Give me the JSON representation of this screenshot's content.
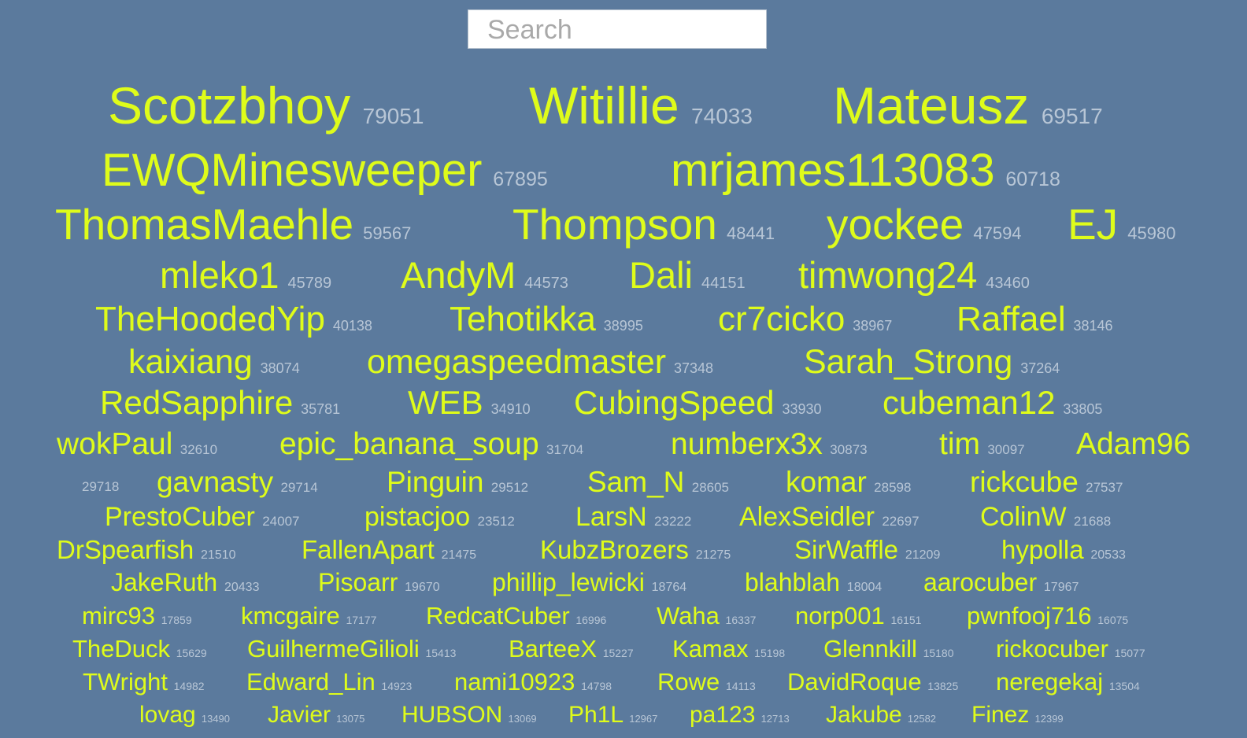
{
  "search": {
    "placeholder": "Search"
  },
  "users": [
    {
      "name": "Scotzbhoy",
      "score": "79051"
    },
    {
      "name": "Witillie",
      "score": "74033"
    },
    {
      "name": "Mateusz",
      "score": "69517"
    },
    {
      "name": "EWQMinesweeper",
      "score": "67895"
    },
    {
      "name": "mrjames113083",
      "score": "60718"
    },
    {
      "name": "ThomasMaehle",
      "score": "59567"
    },
    {
      "name": "Thompson",
      "score": "48441"
    },
    {
      "name": "yockee",
      "score": "47594"
    },
    {
      "name": "EJ",
      "score": "45980"
    },
    {
      "name": "mleko1",
      "score": "45789"
    },
    {
      "name": "AndyM",
      "score": "44573"
    },
    {
      "name": "Dali",
      "score": "44151"
    },
    {
      "name": "timwong24",
      "score": "43460"
    },
    {
      "name": "TheHoodedYip",
      "score": "40138"
    },
    {
      "name": "Tehotikka",
      "score": "38995"
    },
    {
      "name": "cr7cicko",
      "score": "38967"
    },
    {
      "name": "Raffael",
      "score": "38146"
    },
    {
      "name": "kaixiang",
      "score": "38074"
    },
    {
      "name": "omegaspeedmaster",
      "score": "37348"
    },
    {
      "name": "Sarah_Strong",
      "score": "37264"
    },
    {
      "name": "RedSapphire",
      "score": "35781"
    },
    {
      "name": "WEB",
      "score": "34910"
    },
    {
      "name": "CubingSpeed",
      "score": "33930"
    },
    {
      "name": "cubeman12",
      "score": "33805"
    },
    {
      "name": "wokPaul",
      "score": "32610"
    },
    {
      "name": "epic_banana_soup",
      "score": "31704"
    },
    {
      "name": "numberx3x",
      "score": "30873"
    },
    {
      "name": "tim",
      "score": "30097"
    },
    {
      "name": "Adam96",
      "score": "29718"
    },
    {
      "name": "gavnasty",
      "score": "29714"
    },
    {
      "name": "Pinguin",
      "score": "29512"
    },
    {
      "name": "Sam_N",
      "score": "28605"
    },
    {
      "name": "komar",
      "score": "28598"
    },
    {
      "name": "rickcube",
      "score": "27537"
    },
    {
      "name": "PrestoCuber",
      "score": "24007"
    },
    {
      "name": "pistacjoo",
      "score": "23512"
    },
    {
      "name": "LarsN",
      "score": "23222"
    },
    {
      "name": "AlexSeidler",
      "score": "22697"
    },
    {
      "name": "ColinW",
      "score": "21688"
    },
    {
      "name": "DrSpearfish",
      "score": "21510"
    },
    {
      "name": "FallenApart",
      "score": "21475"
    },
    {
      "name": "KubzBrozers",
      "score": "21275"
    },
    {
      "name": "SirWaffle",
      "score": "21209"
    },
    {
      "name": "hypolla",
      "score": "20533"
    },
    {
      "name": "JakeRuth",
      "score": "20433"
    },
    {
      "name": "Pisoarr",
      "score": "19670"
    },
    {
      "name": "phillip_lewicki",
      "score": "18764"
    },
    {
      "name": "blahblah",
      "score": "18004"
    },
    {
      "name": "aarocuber",
      "score": "17967"
    },
    {
      "name": "mirc93",
      "score": "17859"
    },
    {
      "name": "kmcgaire",
      "score": "17177"
    },
    {
      "name": "RedcatCuber",
      "score": "16996"
    },
    {
      "name": "Waha",
      "score": "16337"
    },
    {
      "name": "norp001",
      "score": "16151"
    },
    {
      "name": "pwnfooj716",
      "score": "16075"
    },
    {
      "name": "TheDuck",
      "score": "15629"
    },
    {
      "name": "GuilhermeGilioli",
      "score": "15413"
    },
    {
      "name": "BarteeX",
      "score": "15227"
    },
    {
      "name": "Kamax",
      "score": "15198"
    },
    {
      "name": "Glennkill",
      "score": "15180"
    },
    {
      "name": "rickocuber",
      "score": "15077"
    },
    {
      "name": "TWright",
      "score": "14982"
    },
    {
      "name": "Edward_Lin",
      "score": "14923"
    },
    {
      "name": "nami10923",
      "score": "14798"
    },
    {
      "name": "Rowe",
      "score": "14113"
    },
    {
      "name": "DavidRoque",
      "score": "13825"
    },
    {
      "name": "neregekaj",
      "score": "13504"
    },
    {
      "name": "lovag",
      "score": "13490"
    },
    {
      "name": "Javier",
      "score": "13075"
    },
    {
      "name": "HUBSON",
      "score": "13069"
    },
    {
      "name": "Ph1L",
      "score": "12967"
    },
    {
      "name": "pa123",
      "score": "12713"
    },
    {
      "name": "Jakube",
      "score": "12582"
    },
    {
      "name": "Finez",
      "score": "12399"
    }
  ]
}
